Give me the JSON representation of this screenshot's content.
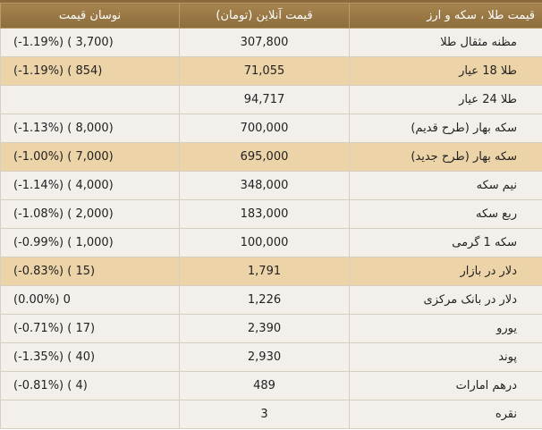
{
  "header": {
    "name_label": "قیمت طلا ، سکه و ارز",
    "price_label": "قیمت آنلاین (تومان)",
    "change_label": "نوسان قیمت"
  },
  "rows": [
    {
      "name": "مظنه مثقال طلا",
      "price": "307,800",
      "change": "(-1.19%) ( 3,700)",
      "highlight": false
    },
    {
      "name": "طلا 18 عیار",
      "price": "71,055",
      "change": "(-1.19%) ( 854)",
      "highlight": true
    },
    {
      "name": "طلا 24 عیار",
      "price": "94,717",
      "change": "",
      "highlight": false
    },
    {
      "name": "سکه بهار (طرح قدیم)",
      "price": "700,000",
      "change": "(-1.13%) ( 8,000)",
      "highlight": false
    },
    {
      "name": "سکه بهار (طرح جدید)",
      "price": "695,000",
      "change": "(-1.00%) ( 7,000)",
      "highlight": true
    },
    {
      "name": "نیم سکه",
      "price": "348,000",
      "change": "(-1.14%) ( 4,000)",
      "highlight": false
    },
    {
      "name": "ربع سکه",
      "price": "183,000",
      "change": "(-1.08%) ( 2,000)",
      "highlight": false
    },
    {
      "name": "سکه 1 گرمی",
      "price": "100,000",
      "change": "(-0.99%) ( 1,000)",
      "highlight": false
    },
    {
      "name": "دلار در بازار",
      "price": "1,791",
      "change": "(-0.83%) ( 15)",
      "highlight": true
    },
    {
      "name": "دلار در بانک مرکزی",
      "price": "1,226",
      "change": "(0.00%) 0",
      "highlight": false
    },
    {
      "name": "یورو",
      "price": "2,390",
      "change": "(-0.71%) ( 17)",
      "highlight": false
    },
    {
      "name": "پوند",
      "price": "2,930",
      "change": "(-1.35%) ( 40)",
      "highlight": false
    },
    {
      "name": "درهم امارات",
      "price": "489",
      "change": "(-0.81%) ( 4)",
      "highlight": false
    },
    {
      "name": "نقره",
      "price": "3",
      "change": "",
      "highlight": false
    }
  ]
}
